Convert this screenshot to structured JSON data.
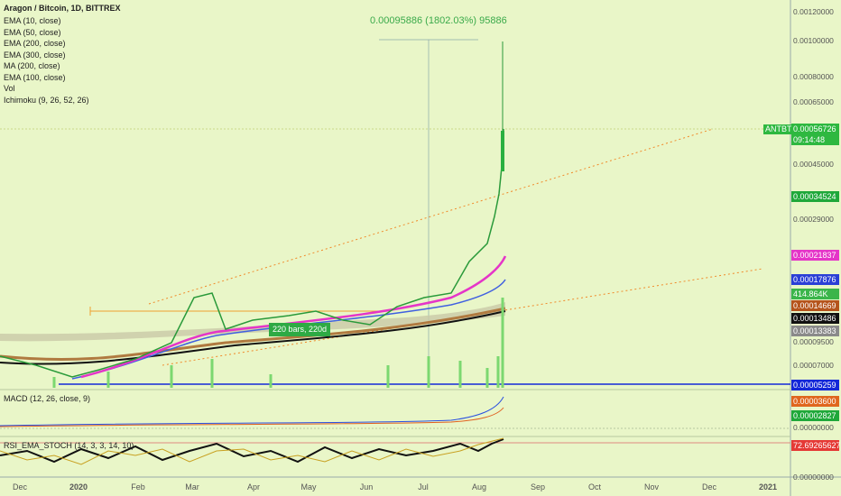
{
  "legend": {
    "symbol": "Aragon / Bitcoin, 1D, BITTREX",
    "indicators": [
      "EMA (10, close)",
      "EMA (50, close)",
      "EMA (200, close)",
      "EMA (300, close)",
      "MA (200, close)",
      "EMA (100, close)",
      "Vol",
      "Ichimoku (9, 26, 52, 26)"
    ]
  },
  "measure": "0.00095886 (1802.03%) 95886",
  "range_label": "220 bars, 220d",
  "price_axis": [
    "0.00120000",
    "0.00100000",
    "0.00080000",
    "0.00065000",
    "0.00045000",
    "0.00029000",
    "0.00009500",
    "0.00007000",
    "0.00000000",
    "0.00000000"
  ],
  "ticker": {
    "name": "ANTBTC",
    "price": "0.00056726",
    "countdown": "09:14:48"
  },
  "badges": [
    {
      "text": "0.00034524",
      "color": "#1fa83a"
    },
    {
      "text": "0.00021837",
      "color": "#e535c8"
    },
    {
      "text": "0.00017876",
      "color": "#2a3fd6"
    },
    {
      "text": "414.864K",
      "color": "#3bb54a"
    },
    {
      "text": "0.00014669",
      "color": "#b5541c"
    },
    {
      "text": "0.00013486",
      "color": "#111111"
    },
    {
      "text": "0.00013383",
      "color": "#8a8a8a"
    },
    {
      "text": "0.00005259",
      "color": "#1428d8"
    },
    {
      "text": "0.00003600",
      "color": "#e0661e"
    },
    {
      "text": "0.00002827",
      "color": "#1fa83a"
    },
    {
      "text": "72.69265627",
      "color": "#e53935"
    }
  ],
  "panes": {
    "macd": "MACD (12, 26, close, 9)",
    "rsi": "RSI_EMA_STOCH (14, 3, 3, 14, 10)"
  },
  "time_axis": [
    "Dec",
    "2020",
    "Feb",
    "Mar",
    "Apr",
    "May",
    "Jun",
    "Jul",
    "Aug",
    "Sep",
    "Oct",
    "Nov",
    "Dec",
    "2021"
  ]
}
